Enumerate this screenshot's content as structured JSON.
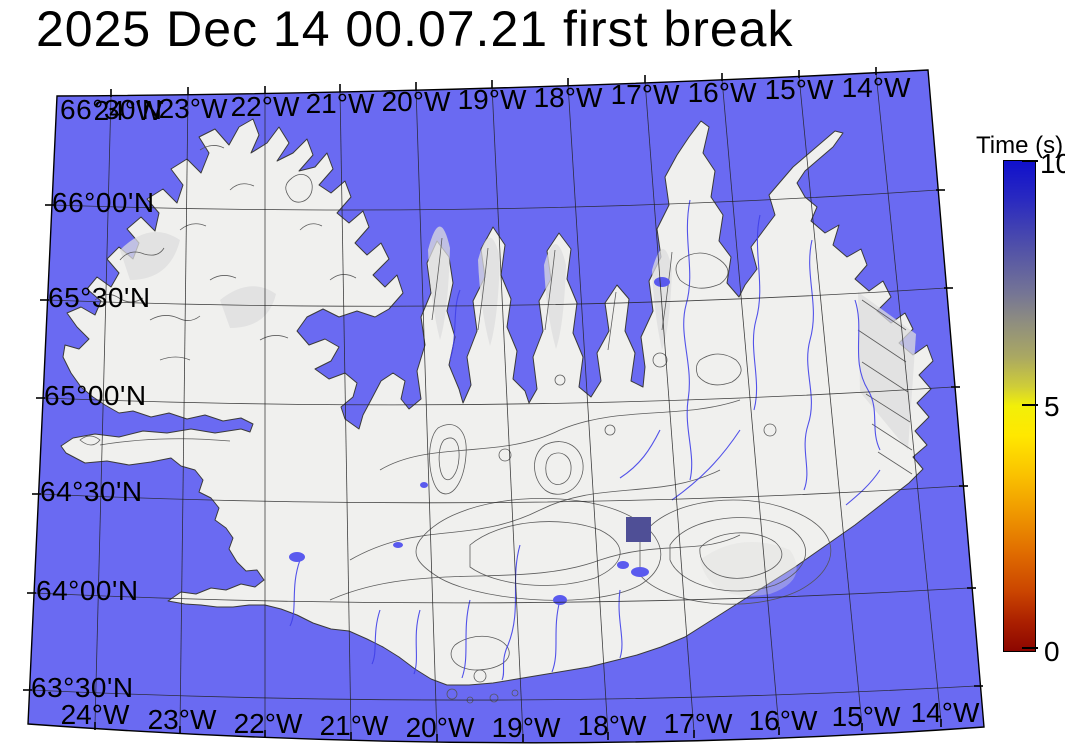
{
  "title": "2025 Dec 14 00.07.21 first break",
  "map": {
    "ocean_color": "#6a6af2",
    "land_color": "#f0f0ee",
    "river_color": "#4040e8",
    "contour_color": "#555555",
    "top_longitude_labels": [
      "24°W",
      "23°W",
      "22°W",
      "21°W",
      "20°W",
      "19°W",
      "18°W",
      "17°W",
      "16°W",
      "15°W",
      "14°W"
    ],
    "bottom_longitude_labels": [
      "24°W",
      "23°W",
      "22°W",
      "21°W",
      "20°W",
      "19°W",
      "18°W",
      "17°W",
      "16°W",
      "15°W",
      "14°W"
    ],
    "latitude_labels": [
      "66°30'N",
      "66°00'N",
      "65°30'N",
      "65°00'N",
      "64°30'N",
      "64°00'N",
      "63°30'N"
    ],
    "event_marker_color": "#4f4f96"
  },
  "colorbar": {
    "label": "Time (s)",
    "max_label": "10",
    "mid_label": "5",
    "min_label": "0",
    "min": 0,
    "max": 10,
    "gradient_top_to_bottom": [
      "#1010cc 0%",
      "#2a2ac0 8%",
      "#5252a8 18%",
      "#757595 27%",
      "#8f8e7f 33%",
      "#aaa862 40%",
      "#cfcd38 46%",
      "#f2ef08 50%",
      "#ffe800 56%",
      "#fac200 64%",
      "#ef9700 72%",
      "#e06c00 80%",
      "#ca4400 88%",
      "#ab2000 94%",
      "#8c0600 100%"
    ]
  }
}
